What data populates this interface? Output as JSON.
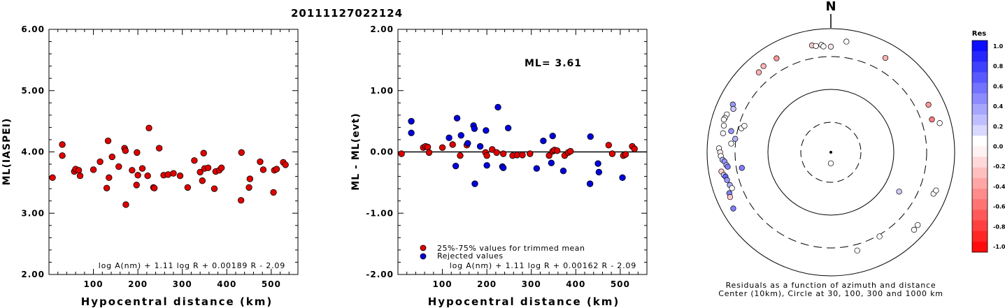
{
  "title": "20111127022124",
  "chart_data": [
    {
      "type": "scatter",
      "ylabel": "ML(IASPEI)",
      "xlabel": "Hypocentral distance (km)",
      "xlim": [
        0,
        560
      ],
      "ylim": [
        2.0,
        6.0
      ],
      "x_ticks": [
        "100",
        "200",
        "300",
        "400",
        "500"
      ],
      "y_ticks": [
        "2.00",
        "3.00",
        "4.00",
        "5.00",
        "6.00"
      ],
      "formula": "log A(nm) + 1.11 log R + 0.00189 R - 2.09",
      "points": [
        {
          "x": 8,
          "y": 3.58
        },
        {
          "x": 30,
          "y": 4.12
        },
        {
          "x": 30,
          "y": 3.94
        },
        {
          "x": 57,
          "y": 3.68
        },
        {
          "x": 60,
          "y": 3.72
        },
        {
          "x": 67,
          "y": 3.7
        },
        {
          "x": 70,
          "y": 3.61
        },
        {
          "x": 100,
          "y": 3.71
        },
        {
          "x": 115,
          "y": 3.84
        },
        {
          "x": 130,
          "y": 3.41
        },
        {
          "x": 133,
          "y": 4.18
        },
        {
          "x": 135,
          "y": 3.58
        },
        {
          "x": 142,
          "y": 3.92
        },
        {
          "x": 157,
          "y": 3.76
        },
        {
          "x": 170,
          "y": 4.06
        },
        {
          "x": 172,
          "y": 4.02
        },
        {
          "x": 173,
          "y": 3.14
        },
        {
          "x": 187,
          "y": 3.7
        },
        {
          "x": 197,
          "y": 3.46
        },
        {
          "x": 198,
          "y": 3.99
        },
        {
          "x": 200,
          "y": 3.62
        },
        {
          "x": 210,
          "y": 3.73
        },
        {
          "x": 222,
          "y": 3.61
        },
        {
          "x": 225,
          "y": 4.39
        },
        {
          "x": 235,
          "y": 3.42
        },
        {
          "x": 237,
          "y": 3.41
        },
        {
          "x": 248,
          "y": 4.06
        },
        {
          "x": 258,
          "y": 3.62
        },
        {
          "x": 268,
          "y": 3.63
        },
        {
          "x": 280,
          "y": 3.65
        },
        {
          "x": 295,
          "y": 3.61
        },
        {
          "x": 312,
          "y": 3.42
        },
        {
          "x": 327,
          "y": 3.86
        },
        {
          "x": 340,
          "y": 3.67
        },
        {
          "x": 345,
          "y": 3.53
        },
        {
          "x": 348,
          "y": 3.98
        },
        {
          "x": 350,
          "y": 3.73
        },
        {
          "x": 358,
          "y": 3.74
        },
        {
          "x": 372,
          "y": 3.4
        },
        {
          "x": 375,
          "y": 3.68
        },
        {
          "x": 383,
          "y": 3.7
        },
        {
          "x": 388,
          "y": 3.74
        },
        {
          "x": 432,
          "y": 3.21
        },
        {
          "x": 433,
          "y": 3.99
        },
        {
          "x": 450,
          "y": 3.42
        },
        {
          "x": 452,
          "y": 3.56
        },
        {
          "x": 475,
          "y": 3.84
        },
        {
          "x": 482,
          "y": 3.71
        },
        {
          "x": 505,
          "y": 3.34
        },
        {
          "x": 507,
          "y": 3.7
        },
        {
          "x": 512,
          "y": 3.72
        },
        {
          "x": 527,
          "y": 3.83
        },
        {
          "x": 532,
          "y": 3.79
        }
      ]
    },
    {
      "type": "scatter",
      "ylabel": "ML - ML(evt)",
      "xlabel": "Hypocentral distance (km)",
      "xlim": [
        0,
        560
      ],
      "ylim": [
        -2.0,
        2.0
      ],
      "x_ticks": [
        "100",
        "200",
        "300",
        "400",
        "500"
      ],
      "y_ticks": [
        "-2.00",
        "-1.00",
        "0.00",
        "1.00",
        "2.00"
      ],
      "annotation": "ML= 3.61",
      "legend": [
        "25%-75% values for trimmed mean",
        "Rejected values"
      ],
      "formula": "log A(nm) + 1.11 log R + 0.00162 R - 2.09",
      "series": [
        {
          "name": "25%-75% values for trimmed mean",
          "color": "#e00000",
          "points": [
            {
              "x": 8,
              "y": -0.03
            },
            {
              "x": 57,
              "y": 0.07
            },
            {
              "x": 62,
              "y": 0.09
            },
            {
              "x": 67,
              "y": 0.08
            },
            {
              "x": 70,
              "y": -0.01
            },
            {
              "x": 100,
              "y": 0.07
            },
            {
              "x": 123,
              "y": 0.12
            },
            {
              "x": 140,
              "y": -0.06
            },
            {
              "x": 155,
              "y": 0.11
            },
            {
              "x": 197,
              "y": -0.01
            },
            {
              "x": 200,
              "y": -0.06
            },
            {
              "x": 212,
              "y": 0.04
            },
            {
              "x": 222,
              "y": -0.01
            },
            {
              "x": 237,
              "y": -0.03
            },
            {
              "x": 258,
              "y": -0.06
            },
            {
              "x": 268,
              "y": -0.05
            },
            {
              "x": 280,
              "y": -0.05
            },
            {
              "x": 297,
              "y": -0.03
            },
            {
              "x": 340,
              "y": -0.06
            },
            {
              "x": 348,
              "y": 0.01
            },
            {
              "x": 352,
              "y": 0.03
            },
            {
              "x": 358,
              "y": 0.02
            },
            {
              "x": 375,
              "y": -0.06
            },
            {
              "x": 383,
              "y": -0.01
            },
            {
              "x": 388,
              "y": 0.01
            },
            {
              "x": 474,
              "y": 0.11
            },
            {
              "x": 482,
              "y": -0.03
            },
            {
              "x": 507,
              "y": -0.06
            },
            {
              "x": 512,
              "y": -0.04
            },
            {
              "x": 527,
              "y": 0.09
            },
            {
              "x": 532,
              "y": 0.05
            }
          ]
        },
        {
          "name": "Rejected values",
          "color": "#0000dd",
          "points": [
            {
              "x": 30,
              "y": 0.5
            },
            {
              "x": 30,
              "y": 0.31
            },
            {
              "x": 115,
              "y": 0.23
            },
            {
              "x": 130,
              "y": -0.23
            },
            {
              "x": 133,
              "y": 0.55
            },
            {
              "x": 142,
              "y": 0.27
            },
            {
              "x": 157,
              "y": 0.14
            },
            {
              "x": 170,
              "y": 0.43
            },
            {
              "x": 172,
              "y": 0.38
            },
            {
              "x": 173,
              "y": -0.52
            },
            {
              "x": 185,
              "y": 0.09
            },
            {
              "x": 198,
              "y": 0.35
            },
            {
              "x": 200,
              "y": -0.22
            },
            {
              "x": 225,
              "y": 0.73
            },
            {
              "x": 235,
              "y": -0.24
            },
            {
              "x": 237,
              "y": -0.26
            },
            {
              "x": 248,
              "y": 0.39
            },
            {
              "x": 312,
              "y": -0.27
            },
            {
              "x": 327,
              "y": 0.18
            },
            {
              "x": 345,
              "y": -0.18
            },
            {
              "x": 348,
              "y": 0.26
            },
            {
              "x": 372,
              "y": -0.31
            },
            {
              "x": 432,
              "y": -0.52
            },
            {
              "x": 433,
              "y": 0.25
            },
            {
              "x": 450,
              "y": -0.19
            },
            {
              "x": 452,
              "y": -0.33
            },
            {
              "x": 505,
              "y": -0.42
            }
          ]
        }
      ]
    },
    {
      "type": "scatter",
      "subtype": "polar",
      "north_label": "N",
      "caption_line1": "Residuals as a function of azimuth and distance",
      "caption_line2": "Center (10km), Circle at 30, 100, 300 and 1000 km",
      "colorbar_title": "Res",
      "colorbar_labels": [
        "1.0",
        "0.8",
        "0.6",
        "0.4",
        "0.2",
        "0.0",
        "-0.2",
        "-0.4",
        "-0.6",
        "-0.8",
        "-1.0"
      ],
      "points": [
        {
          "az": 180,
          "dist": 15,
          "res": 0.0
        },
        {
          "az": 30,
          "dist": 530,
          "res": -0.3
        },
        {
          "az": 8,
          "dist": 600,
          "res": 0.0
        },
        {
          "az": 350,
          "dist": 520,
          "res": -0.2
        },
        {
          "az": 352,
          "dist": 495,
          "res": 0.0
        },
        {
          "az": 355,
          "dist": 505,
          "res": 0.0
        },
        {
          "az": 356,
          "dist": 470,
          "res": 0.0
        },
        {
          "az": 0,
          "dist": 460,
          "res": -0.1
        },
        {
          "az": 330,
          "dist": 520,
          "res": -0.4
        },
        {
          "az": 322,
          "dist": 540,
          "res": -0.3
        },
        {
          "az": 318,
          "dist": 500,
          "res": -0.3
        },
        {
          "az": 296,
          "dist": 530,
          "res": 0.4
        },
        {
          "az": 294,
          "dist": 480,
          "res": 0.2
        },
        {
          "az": 290,
          "dist": 570,
          "res": 0.0
        },
        {
          "az": 288,
          "dist": 585,
          "res": 0.0
        },
        {
          "az": 287,
          "dist": 600,
          "res": 0.0
        },
        {
          "az": 284,
          "dist": 560,
          "res": 0.0
        },
        {
          "az": 280,
          "dist": 540,
          "res": 0.0
        },
        {
          "az": 272,
          "dist": 600,
          "res": 0.0
        },
        {
          "az": 270,
          "dist": 570,
          "res": -0.1
        },
        {
          "az": 268,
          "dist": 555,
          "res": 0.0
        },
        {
          "az": 266,
          "dist": 520,
          "res": 0.3
        },
        {
          "az": 265,
          "dist": 480,
          "res": 0.4
        },
        {
          "az": 263,
          "dist": 450,
          "res": 0.3
        },
        {
          "az": 262,
          "dist": 430,
          "res": 0.5
        },
        {
          "az": 260,
          "dist": 580,
          "res": -0.2
        },
        {
          "az": 258,
          "dist": 540,
          "res": 0.2
        },
        {
          "az": 257,
          "dist": 510,
          "res": 0.6
        },
        {
          "az": 255,
          "dist": 495,
          "res": 0.4
        },
        {
          "az": 252,
          "dist": 470,
          "res": 0.3
        },
        {
          "az": 250,
          "dist": 450,
          "res": 0.0
        },
        {
          "az": 248,
          "dist": 540,
          "res": 0.5
        },
        {
          "az": 246,
          "dist": 560,
          "res": -0.2
        },
        {
          "az": 240,
          "dist": 620,
          "res": 0.5
        },
        {
          "az": 275,
          "dist": 360,
          "res": 0.0
        },
        {
          "az": 278,
          "dist": 310,
          "res": 0.3
        },
        {
          "az": 285,
          "dist": 270,
          "res": 0.0
        },
        {
          "az": 282,
          "dist": 390,
          "res": 0.4
        },
        {
          "az": 260,
          "dist": 250,
          "res": 0.5
        },
        {
          "az": 120,
          "dist": 170,
          "res": 0.2
        },
        {
          "az": 72,
          "dist": 470,
          "res": -0.5
        },
        {
          "az": 64,
          "dist": 520,
          "res": -0.4
        },
        {
          "az": 112,
          "dist": 570,
          "res": 0.0
        },
        {
          "az": 110,
          "dist": 600,
          "res": 0.0
        },
        {
          "az": 130,
          "dist": 640,
          "res": 0.0
        },
        {
          "az": 133,
          "dist": 650,
          "res": 0.0
        },
        {
          "az": 150,
          "dist": 320,
          "res": 0.0
        },
        {
          "az": 165,
          "dist": 390,
          "res": 0.0
        },
        {
          "az": 75,
          "dist": 620,
          "res": 0.0
        },
        {
          "az": 287,
          "dist": 250,
          "res": 0.0
        }
      ]
    }
  ]
}
